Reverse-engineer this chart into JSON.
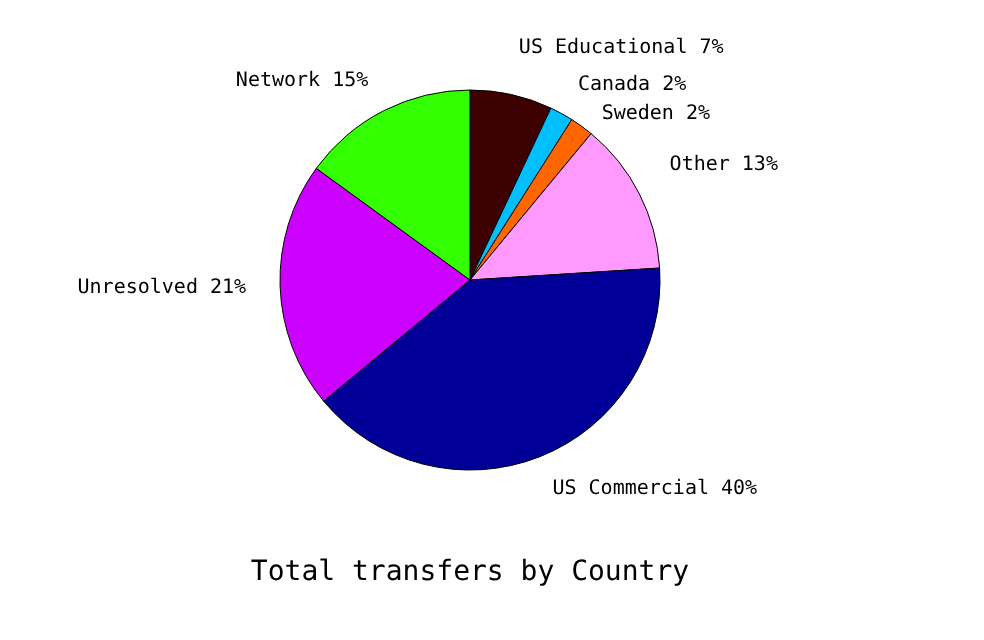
{
  "chart_data": {
    "type": "pie",
    "title": "Total transfers by Country",
    "categories": [
      "US Educational",
      "Canada",
      "Sweden",
      "Other",
      "US Commercial",
      "Unresolved",
      "Network"
    ],
    "values": [
      7,
      2,
      2,
      13,
      40,
      21,
      15
    ],
    "value_labels": [
      "7%",
      "2%",
      "2%",
      "13%",
      "40%",
      "21%",
      "15%"
    ],
    "colors": [
      "#3d0000",
      "#00bfff",
      "#ff6600",
      "#ff99ff",
      "#000099",
      "#cc00ff",
      "#33ff00"
    ],
    "legend": false
  }
}
